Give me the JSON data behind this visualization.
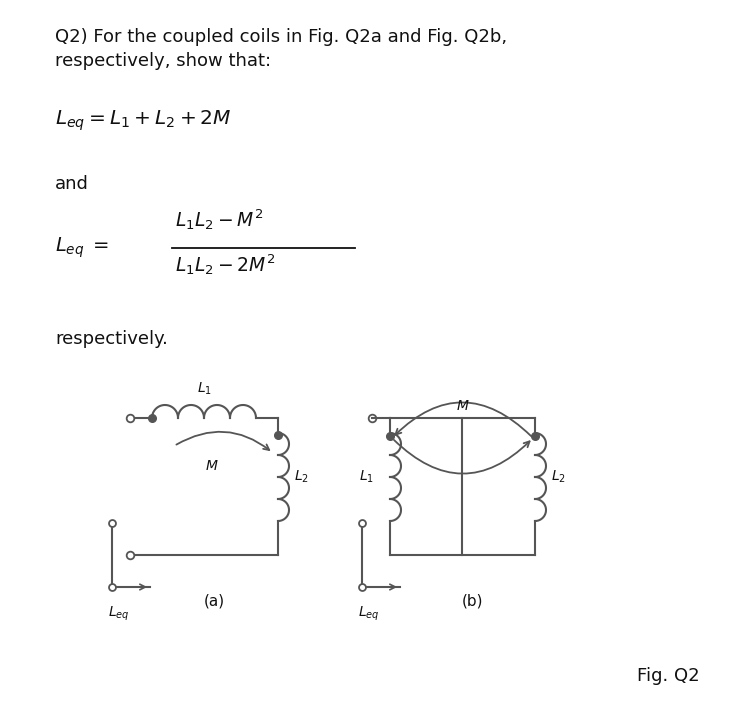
{
  "bg_color": "#ffffff",
  "text_color": "#111111",
  "line_color": "#555555",
  "title_line1": "Q2) For the coupled coils in Fig. Q2a and Fig. Q2b,",
  "title_line2": "respectively, show that:",
  "eq1": "$L_{eq} = L_1 + L_2 + 2M$",
  "and_text": "and",
  "eq2_leq": "$L_{eq} =$",
  "eq2_num": "$L_1L_2 - M^2$",
  "eq2_den": "$L_1L_2 - 2M^2$",
  "respectively_text": "respectively.",
  "fig_label": "Fig. Q2",
  "caption_a": "(a)",
  "caption_b": "(b)"
}
